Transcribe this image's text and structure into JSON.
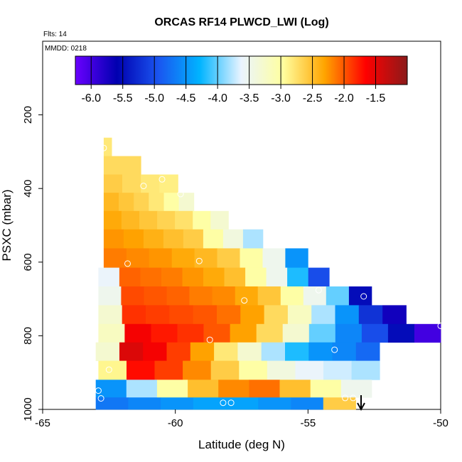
{
  "chart_data": {
    "type": "heatmap",
    "title": "ORCAS RF14 PLWCD_LWI (Log)",
    "flights_note": "Flts: 14",
    "date_note": "MMDD: 0218",
    "xlabel": "Latitude (deg N)",
    "ylabel": "PSXC (mbar)",
    "xlim": [
      -65,
      -50
    ],
    "ylim": [
      1000,
      0
    ],
    "x_ticks": [
      "-65",
      "-60",
      "-55",
      "-50"
    ],
    "y_ticks": [
      "200",
      "400",
      "600",
      "800",
      "1000"
    ],
    "grid": false,
    "legend": "colorbar top",
    "colorbar": {
      "ticks": [
        "-6.0",
        "-5.5",
        "-5.0",
        "-4.5",
        "-4.0",
        "-3.5",
        "-3.0",
        "-2.5",
        "-2.0",
        "-1.5"
      ],
      "range": [
        -6.25,
        -1.0
      ],
      "colors": [
        "#6a00ff",
        "#0000b0",
        "#1a55f0",
        "#00b4ff",
        "#eaf4ff",
        "#ffffa0",
        "#ffa500",
        "#ff0000",
        "#8b1a1a"
      ]
    },
    "rows": [
      {
        "p": 287,
        "x0": -62.7,
        "x1": -62.4,
        "values": [
          -2.8
        ]
      },
      {
        "p": 337,
        "x0": -62.7,
        "x1": -61.3,
        "values": [
          -2.7
        ]
      },
      {
        "p": 387,
        "x0": -62.7,
        "x1": -59.9,
        "values": [
          -2.6,
          -2.7,
          -2.8,
          -2.85
        ]
      },
      {
        "p": 436,
        "x0": -62.7,
        "x1": -59.3,
        "values": [
          -2.45,
          -2.55,
          -2.65,
          -2.8,
          -3.0,
          -3.3
        ]
      },
      {
        "p": 486,
        "x0": -62.7,
        "x1": -58.0,
        "values": [
          -2.35,
          -2.45,
          -2.55,
          -2.65,
          -2.75,
          -3.0,
          -3.3
        ]
      },
      {
        "p": 536,
        "x0": -62.7,
        "x1": -56.7,
        "values": [
          -2.25,
          -2.3,
          -2.4,
          -2.5,
          -2.6,
          -3.0,
          -3.4,
          -3.8
        ]
      },
      {
        "p": 589,
        "x0": -62.7,
        "x1": -55.0,
        "values": [
          -2.15,
          -2.2,
          -2.25,
          -2.35,
          -2.45,
          -2.6,
          -3.0,
          -3.5,
          -4.5
        ]
      },
      {
        "p": 641,
        "x0": -62.9,
        "x1": -54.2,
        "values": [
          -3.6,
          -2.05,
          -2.1,
          -2.15,
          -2.25,
          -2.35,
          -2.5,
          -3.0,
          -3.5,
          -4.2,
          -5.0
        ]
      },
      {
        "p": 691,
        "x0": -62.9,
        "x1": -52.6,
        "values": [
          -3.5,
          -1.95,
          -2.0,
          -2.05,
          -2.15,
          -2.2,
          -2.35,
          -2.55,
          -3.0,
          -3.5,
          -4.0,
          -5.5
        ]
      },
      {
        "p": 743,
        "x0": -62.9,
        "x1": -51.3,
        "values": [
          -3.3,
          -1.85,
          -1.9,
          -1.95,
          -2.0,
          -2.1,
          -2.3,
          -2.7,
          -3.2,
          -3.8,
          -4.5,
          -5.2,
          -5.7
        ]
      },
      {
        "p": 793,
        "x0": -62.9,
        "x1": -50.0,
        "values": [
          -3.2,
          -1.6,
          -1.75,
          -1.85,
          -2.0,
          -2.3,
          -2.7,
          -3.3,
          -4.0,
          -4.6,
          -5.0,
          -5.5,
          -6.0
        ]
      },
      {
        "p": 843,
        "x0": -63.0,
        "x1": -52.3,
        "values": [
          -3.3,
          -1.45,
          -1.6,
          -1.9,
          -2.3,
          -2.8,
          -3.3,
          -3.8,
          -4.2,
          -4.5,
          -4.6,
          -4.8
        ]
      },
      {
        "p": 893,
        "x0": -62.9,
        "x1": -52.3,
        "values": [
          -2.9,
          -1.7,
          -1.9,
          -2.2,
          -2.6,
          -3.0,
          -3.4,
          -3.6,
          -3.7,
          -3.8
        ]
      },
      {
        "p": 946,
        "x0": -63.0,
        "x1": -52.6,
        "values": [
          -4.5,
          -3.8,
          -3.0,
          -2.5,
          -2.2,
          -2.1,
          -2.5,
          -3.0,
          -3.5
        ]
      },
      {
        "p": 989,
        "x0": -63.0,
        "x1": -53.2,
        "values": [
          -4.7,
          -4.6,
          -4.5,
          -4.4,
          -4.4,
          -4.5,
          -4.6,
          -2.6
        ]
      }
    ],
    "points": [
      {
        "x": -62.7,
        "y": 290
      },
      {
        "x": -61.2,
        "y": 393
      },
      {
        "x": -60.5,
        "y": 375
      },
      {
        "x": -59.8,
        "y": 415
      },
      {
        "x": -61.8,
        "y": 604
      },
      {
        "x": -59.1,
        "y": 597
      },
      {
        "x": -57.4,
        "y": 704
      },
      {
        "x": -54.6,
        "y": 676
      },
      {
        "x": -52.9,
        "y": 693
      },
      {
        "x": -50.0,
        "y": 773
      },
      {
        "x": -58.7,
        "y": 811
      },
      {
        "x": -54.0,
        "y": 838
      },
      {
        "x": -62.5,
        "y": 892
      },
      {
        "x": -62.9,
        "y": 949
      },
      {
        "x": -62.8,
        "y": 970
      },
      {
        "x": -58.2,
        "y": 982
      },
      {
        "x": -57.9,
        "y": 982
      },
      {
        "x": -53.6,
        "y": 969
      },
      {
        "x": -53.3,
        "y": 969
      }
    ],
    "marker_x": -53.0
  }
}
